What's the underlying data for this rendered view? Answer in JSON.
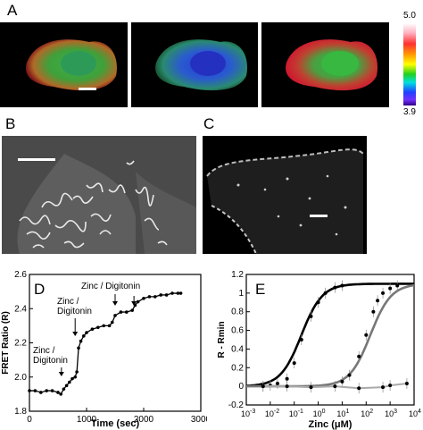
{
  "panels": {
    "a": {
      "label": "A"
    },
    "b": {
      "label": "B"
    },
    "c": {
      "label": "C"
    },
    "d": {
      "label": "D"
    },
    "e": {
      "label": "E"
    }
  },
  "colorbar": {
    "max_label": "5.0",
    "min_label": "3.9"
  },
  "chart_data": [
    {
      "panel": "D",
      "type": "line",
      "xlabel": "Time (sec)",
      "ylabel": "FRET Ratio (R)",
      "xlim": [
        0,
        3000
      ],
      "ylim": [
        1.8,
        2.6
      ],
      "xticks": [
        0,
        1000,
        2000,
        3000
      ],
      "yticks": [
        1.8,
        2.0,
        2.2,
        2.4,
        2.6
      ],
      "annotations": [
        {
          "text": "Zinc /",
          "text2": "Digitonin",
          "arrow_x": 560
        },
        {
          "text": "Zinc /",
          "text2": "Digitonin",
          "arrow_x": 800
        },
        {
          "text": "Zinc / Digitonin",
          "arrow_x": 1500
        },
        {
          "text": "",
          "arrow_x": 1830
        }
      ],
      "series": [
        {
          "x": [
            0,
            100,
            200,
            300,
            400,
            500,
            550,
            600,
            650,
            700,
            750,
            800,
            830,
            860,
            900,
            950,
            1000,
            1100,
            1200,
            1300,
            1400,
            1450,
            1500,
            1600,
            1700,
            1800,
            1850,
            1900,
            2000,
            2100,
            2200,
            2300,
            2400,
            2500,
            2600,
            2650
          ],
          "y": [
            1.92,
            1.92,
            1.91,
            1.92,
            1.92,
            1.91,
            1.9,
            1.93,
            1.95,
            1.97,
            1.99,
            2.0,
            2.03,
            2.17,
            2.21,
            2.24,
            2.26,
            2.28,
            2.29,
            2.3,
            2.3,
            2.32,
            2.36,
            2.38,
            2.38,
            2.39,
            2.42,
            2.44,
            2.46,
            2.47,
            2.47,
            2.48,
            2.48,
            2.49,
            2.49,
            2.49
          ]
        }
      ]
    },
    {
      "panel": "E",
      "type": "scatter",
      "xlabel": "Zinc (μM)",
      "ylabel": "R - Rmin",
      "xscale": "log",
      "xlim": [
        0.001,
        10000
      ],
      "ylim": [
        -0.2,
        1.2
      ],
      "xtick_labels": [
        "10-3",
        "10-2",
        "10-1",
        "100",
        "101",
        "102",
        "103",
        "104"
      ],
      "yticks": [
        -0.2,
        0,
        0.2,
        0.4,
        0.6,
        0.8,
        1.0,
        1.2
      ],
      "series": [
        {
          "color": "#000000",
          "x": [
            0.005,
            0.01,
            0.02,
            0.05,
            0.1,
            0.2,
            0.5,
            1,
            2,
            5,
            10
          ],
          "y": [
            0.0,
            0.01,
            0.03,
            0.08,
            0.25,
            0.5,
            0.75,
            0.9,
            1.0,
            1.06,
            1.08
          ],
          "fit_kd": 0.2
        },
        {
          "color": "#777777",
          "x": [
            10,
            20,
            50,
            100,
            200,
            300,
            500,
            1000,
            2000
          ],
          "y": [
            0.05,
            0.12,
            0.32,
            0.55,
            0.8,
            0.92,
            1.0,
            1.05,
            1.08
          ],
          "fit_kd": 150
        },
        {
          "color": "#aaaaaa",
          "x": [
            0.005,
            0.05,
            0.5,
            5,
            50,
            500,
            1000,
            5000
          ],
          "y": [
            0.0,
            0.0,
            -0.01,
            0.0,
            -0.02,
            -0.01,
            0.01,
            0.03
          ]
        }
      ]
    }
  ]
}
